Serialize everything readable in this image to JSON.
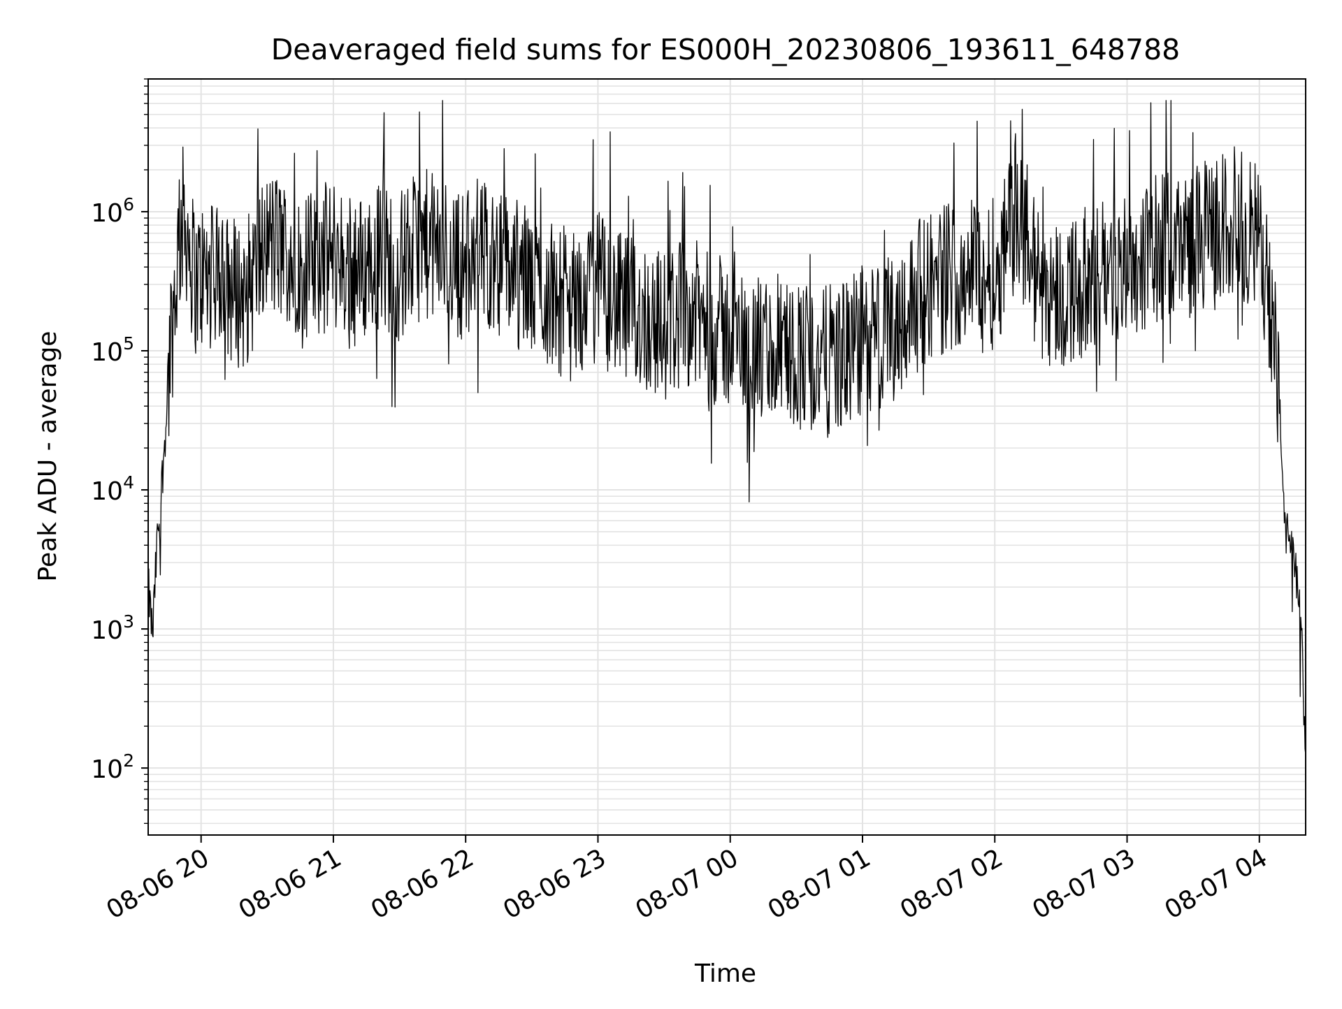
{
  "chart_data": {
    "type": "line",
    "title": "Deaveraged field sums for ES000H_20230806_193611_648788",
    "xlabel": "Time",
    "ylabel": "Peak ADU - average",
    "yscale": "log",
    "grid": true,
    "xlim": [
      "2023-08-06 19:36",
      "2023-08-07 04:21"
    ],
    "ylim": [
      33,
      9000000
    ],
    "x_ticks": [
      "08-06 20",
      "08-06 21",
      "08-06 22",
      "08-06 23",
      "08-07 00",
      "08-07 01",
      "08-07 02",
      "08-07 03",
      "08-07 04"
    ],
    "y_ticks": [
      {
        "value": 100,
        "base": "10",
        "exp": "2"
      },
      {
        "value": 1000,
        "base": "10",
        "exp": "3"
      },
      {
        "value": 10000,
        "base": "10",
        "exp": "4"
      },
      {
        "value": 100000,
        "base": "10",
        "exp": "5"
      },
      {
        "value": 1000000,
        "base": "10",
        "exp": "6"
      }
    ],
    "series": [
      {
        "color": "#000000",
        "x": [
          "2023-08-06 19:36",
          "2023-08-06 19:38",
          "2023-08-06 19:40",
          "2023-08-06 19:42",
          "2023-08-06 19:44",
          "2023-08-06 19:46",
          "2023-08-06 19:48",
          "2023-08-06 19:50",
          "2023-08-06 19:52",
          "2023-08-06 19:54",
          "2023-08-06 19:56",
          "2023-08-06 19:58",
          "2023-08-06 20:00",
          "2023-08-06 20:10",
          "2023-08-06 20:20",
          "2023-08-06 20:30",
          "2023-08-06 20:40",
          "2023-08-06 20:50",
          "2023-08-06 21:00",
          "2023-08-06 21:10",
          "2023-08-06 21:20",
          "2023-08-06 21:30",
          "2023-08-06 21:40",
          "2023-08-06 21:50",
          "2023-08-06 22:00",
          "2023-08-06 22:10",
          "2023-08-06 22:20",
          "2023-08-06 22:30",
          "2023-08-06 22:40",
          "2023-08-06 22:50",
          "2023-08-06 23:00",
          "2023-08-06 23:10",
          "2023-08-06 23:20",
          "2023-08-06 23:30",
          "2023-08-06 23:40",
          "2023-08-06 23:50",
          "2023-08-07 00:00",
          "2023-08-07 00:10",
          "2023-08-07 00:20",
          "2023-08-07 00:30",
          "2023-08-07 00:40",
          "2023-08-07 00:50",
          "2023-08-07 01:00",
          "2023-08-07 01:10",
          "2023-08-07 01:20",
          "2023-08-07 01:30",
          "2023-08-07 01:40",
          "2023-08-07 01:50",
          "2023-08-07 02:00",
          "2023-08-07 02:10",
          "2023-08-07 02:20",
          "2023-08-07 02:30",
          "2023-08-07 02:40",
          "2023-08-07 02:50",
          "2023-08-07 03:00",
          "2023-08-07 03:10",
          "2023-08-07 03:20",
          "2023-08-07 03:30",
          "2023-08-07 03:40",
          "2023-08-07 03:50",
          "2023-08-07 04:00",
          "2023-08-07 04:04",
          "2023-08-07 04:08",
          "2023-08-07 04:12",
          "2023-08-07 04:16",
          "2023-08-07 04:19",
          "2023-08-07 04:21"
        ],
        "y": [
          2000,
          900,
          4000,
          10000,
          30000,
          100000,
          250000,
          600000,
          900000,
          700000,
          400000,
          300000,
          350000,
          300000,
          250000,
          600000,
          500000,
          400000,
          500000,
          350000,
          500000,
          400000,
          600000,
          500000,
          400000,
          500000,
          400000,
          300000,
          250000,
          200000,
          300000,
          200000,
          180000,
          150000,
          200000,
          150000,
          130000,
          100000,
          90000,
          100000,
          80000,
          90000,
          110000,
          130000,
          200000,
          300000,
          350000,
          400000,
          350000,
          1000000,
          300000,
          250000,
          300000,
          350000,
          400000,
          500000,
          600000,
          600000,
          700000,
          900000,
          600000,
          300000,
          80000,
          5000,
          3000,
          1000,
          100
        ]
      }
    ]
  }
}
